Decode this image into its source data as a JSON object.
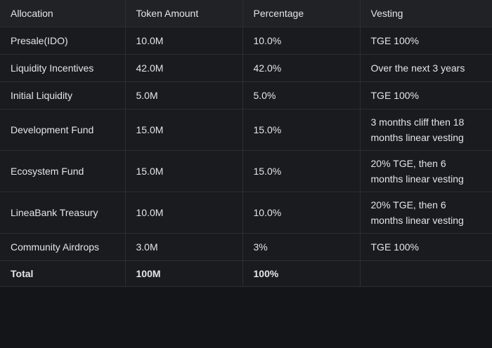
{
  "table": {
    "header": [
      "Allocation",
      "Token Amount",
      "Percentage",
      "Vesting"
    ],
    "rows": [
      [
        "Presale(IDO)",
        "10.0M",
        "10.0%",
        "TGE 100%"
      ],
      [
        "Liquidity Incentives",
        "42.0M",
        "42.0%",
        "Over the next 3 years"
      ],
      [
        "Initial Liquidity",
        "5.0M",
        "5.0%",
        "TGE 100%"
      ],
      [
        "Development Fund",
        "15.0M",
        "15.0%",
        "3 months cliff then 18 months linear vesting"
      ],
      [
        "Ecosystem Fund",
        "15.0M",
        "15.0%",
        "20% TGE, then 6 months linear vesting"
      ],
      [
        "LineaBank Treasury",
        "10.0M",
        "10.0%",
        "20% TGE, then 6 months linear vesting"
      ],
      [
        "Community Airdrops",
        "3.0M",
        "3%",
        "TGE 100%"
      ]
    ],
    "total": [
      "Total",
      "100M",
      "100%"
    ]
  }
}
